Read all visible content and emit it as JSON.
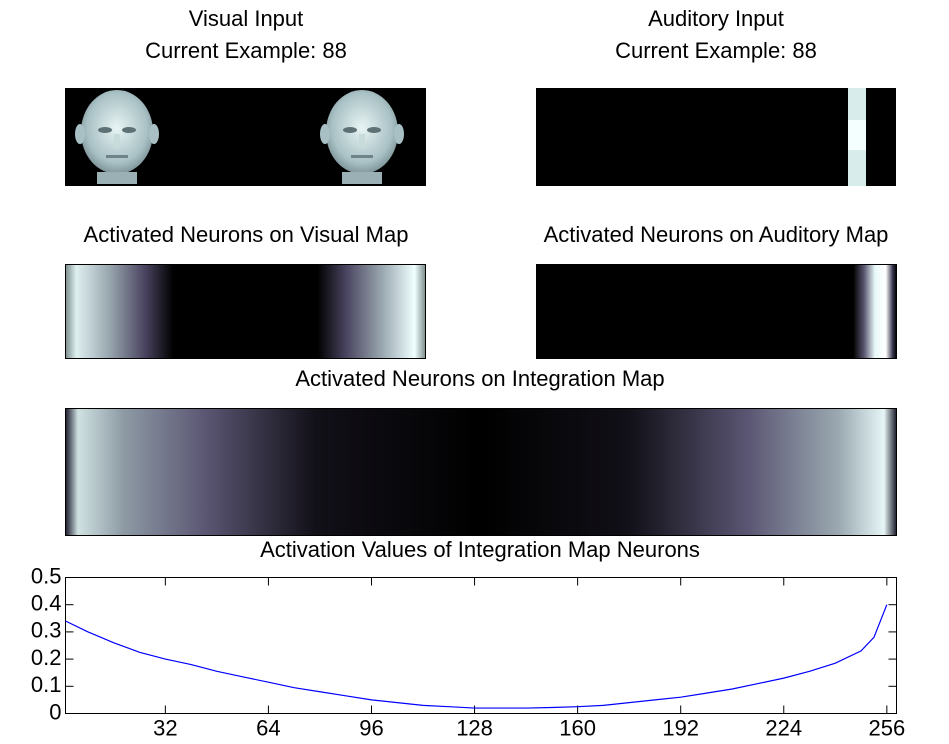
{
  "visual_input": {
    "title": "Visual Input",
    "subtitle": "Current Example: 88"
  },
  "auditory_input": {
    "title": "Auditory Input",
    "subtitle": "Current Example: 88"
  },
  "visual_map": {
    "title": "Activated Neurons on Visual Map"
  },
  "auditory_map": {
    "title": "Activated Neurons on Auditory Map"
  },
  "integration_map": {
    "title": "Activated Neurons on Integration Map"
  },
  "chart_data": {
    "type": "line",
    "title": "Activation Values of Integration Map Neurons",
    "x": [
      1,
      8,
      16,
      24,
      32,
      40,
      48,
      56,
      64,
      72,
      80,
      88,
      96,
      104,
      112,
      120,
      128,
      136,
      144,
      152,
      160,
      168,
      176,
      184,
      192,
      200,
      208,
      216,
      224,
      232,
      240,
      248,
      252,
      256
    ],
    "values": [
      0.34,
      0.3,
      0.26,
      0.225,
      0.2,
      0.18,
      0.155,
      0.135,
      0.115,
      0.095,
      0.08,
      0.065,
      0.05,
      0.04,
      0.03,
      0.025,
      0.02,
      0.02,
      0.02,
      0.022,
      0.025,
      0.03,
      0.04,
      0.05,
      0.06,
      0.075,
      0.09,
      0.11,
      0.13,
      0.155,
      0.185,
      0.23,
      0.28,
      0.4
    ],
    "color": "#0000ff",
    "xlim": [
      1,
      259
    ],
    "ylim": [
      0,
      0.5
    ],
    "xticks": [
      32,
      64,
      96,
      128,
      160,
      192,
      224,
      256
    ],
    "yticks": [
      0,
      0.1,
      0.2,
      0.3,
      0.4,
      0.5
    ]
  }
}
